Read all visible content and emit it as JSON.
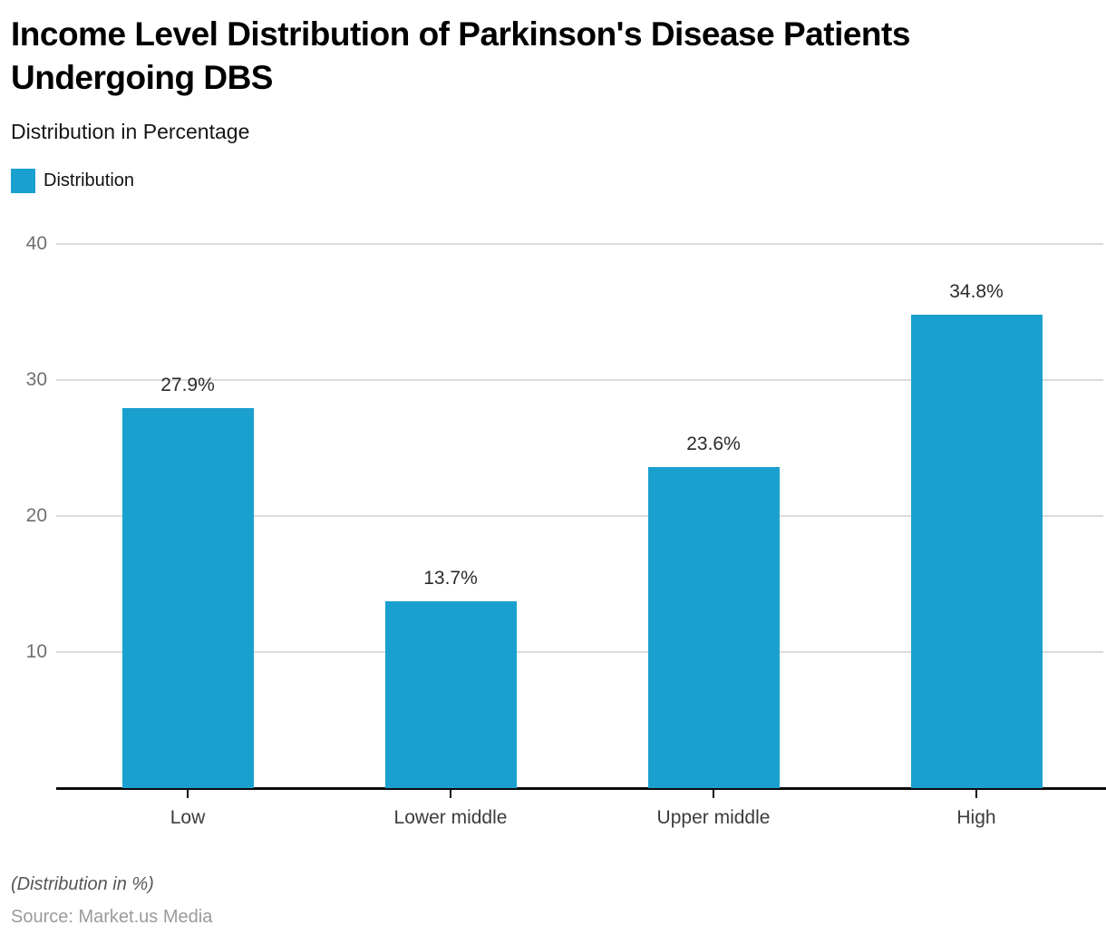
{
  "chart_data": {
    "type": "bar",
    "title": "Income Level Distribution of Parkinson's Disease Patients Undergoing DBS",
    "subtitle": "Distribution in Percentage",
    "categories": [
      "Low",
      "Lower middle",
      "Upper middle",
      "High"
    ],
    "series": [
      {
        "name": "Distribution",
        "values": [
          27.9,
          13.7,
          23.6,
          34.8
        ],
        "color": "#1AA0CE"
      }
    ],
    "value_labels": [
      "27.9%",
      "13.7%",
      "23.6%",
      "34.8%"
    ],
    "xlabel": "",
    "ylabel": "",
    "ylim": [
      0,
      40
    ],
    "yticks": [
      10,
      20,
      30,
      40
    ],
    "grid": "horizontal-only",
    "legend_position": "top-left",
    "gridline_color": "#DBDBDB",
    "axis_color": "#0B0B0B"
  },
  "footer": {
    "note": "(Distribution in %)",
    "source": "Source: Market.us Media"
  }
}
